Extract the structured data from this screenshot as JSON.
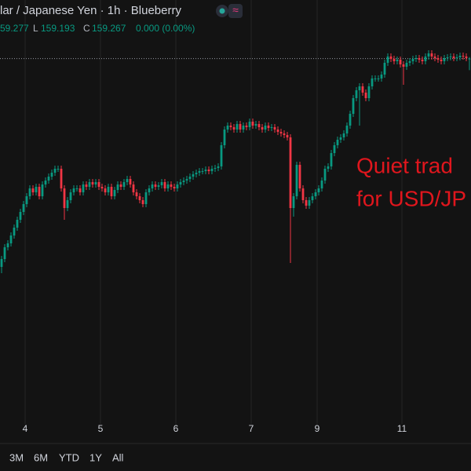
{
  "chart_data": {
    "type": "candlestick",
    "title": "lar / Japanese Yen · 1h · Blueberry",
    "ohlc_legend": {
      "high": "59.277",
      "low_label": "L",
      "low": "159.193",
      "close_label": "C",
      "close": "159.267",
      "change": "0.000 (0.00%)"
    },
    "annotation": [
      "Quiet trad",
      "for USD/JP"
    ],
    "up_color": "#089981",
    "down_color": "#f23645",
    "grid": true,
    "last_price_line": true,
    "xlim": [
      -0.5,
      149.5
    ],
    "xticks": [
      {
        "value": 7.5,
        "label": "4"
      },
      {
        "value": 31.5,
        "label": "5"
      },
      {
        "value": 55.5,
        "label": "6"
      },
      {
        "value": 79.5,
        "label": "7"
      },
      {
        "value": 100.5,
        "label": "9"
      },
      {
        "value": 127.5,
        "label": "11"
      }
    ],
    "ylim": [
      156.94,
      159.64
    ],
    "open": [
      157.94,
      157.99,
      158.065,
      158.09,
      158.14,
      158.19,
      158.24,
      158.29,
      158.34,
      158.39,
      158.44,
      158.415,
      158.45,
      158.39,
      158.465,
      158.49,
      158.515,
      158.54,
      158.565,
      158.565,
      158.44,
      158.315,
      158.365,
      158.415,
      158.44,
      158.44,
      158.415,
      158.465,
      158.45,
      158.48,
      158.465,
      158.48,
      158.45,
      158.44,
      158.415,
      158.45,
      158.39,
      158.43,
      158.465,
      158.45,
      158.48,
      158.5,
      158.465,
      158.415,
      158.39,
      158.365,
      158.34,
      158.415,
      158.44,
      158.465,
      158.45,
      158.46,
      158.48,
      158.44,
      158.465,
      158.45,
      158.44,
      158.465,
      158.48,
      158.49,
      158.5,
      158.515,
      158.53,
      158.54,
      158.55,
      158.55,
      158.56,
      158.55,
      158.565,
      158.57,
      158.58,
      158.715,
      158.815,
      158.84,
      158.83,
      158.815,
      158.85,
      158.815,
      158.84,
      158.83,
      158.865,
      158.84,
      158.85,
      158.83,
      158.815,
      158.84,
      158.825,
      158.83,
      158.815,
      158.8,
      158.79,
      158.78,
      158.765,
      158.315,
      158.39,
      158.59,
      158.44,
      158.365,
      158.33,
      158.365,
      158.39,
      158.415,
      158.44,
      158.49,
      158.565,
      158.58,
      158.665,
      158.715,
      158.75,
      158.765,
      158.79,
      158.84,
      158.915,
      159.015,
      159.065,
      159.09,
      159.05,
      159.015,
      159.09,
      159.14,
      159.14,
      159.14,
      159.165,
      159.24,
      159.28,
      159.265,
      159.25,
      159.26,
      159.23,
      159.215,
      159.24,
      159.25,
      159.265,
      159.27,
      159.26,
      159.25,
      159.28,
      159.3,
      159.28,
      159.27,
      159.26,
      159.25,
      159.27,
      159.275,
      159.28,
      159.27,
      159.275,
      159.285,
      159.28,
      159.267
    ],
    "high": [
      158.01,
      158.085,
      158.11,
      158.16,
      158.21,
      158.26,
      158.31,
      158.36,
      158.41,
      158.46,
      158.46,
      158.47,
      158.47,
      158.485,
      158.51,
      158.535,
      158.56,
      158.585,
      158.585,
      158.585,
      158.46,
      158.385,
      158.435,
      158.46,
      158.46,
      158.46,
      158.485,
      158.485,
      158.5,
      158.5,
      158.5,
      158.5,
      158.47,
      158.46,
      158.47,
      158.47,
      158.45,
      158.485,
      158.485,
      158.5,
      158.52,
      158.52,
      158.485,
      158.435,
      158.41,
      158.385,
      158.435,
      158.46,
      158.485,
      158.485,
      158.48,
      158.5,
      158.5,
      158.485,
      158.485,
      158.47,
      158.485,
      158.5,
      158.51,
      158.52,
      158.535,
      158.55,
      158.56,
      158.57,
      158.57,
      158.58,
      158.58,
      158.585,
      158.59,
      158.6,
      158.735,
      158.835,
      158.86,
      158.86,
      158.85,
      158.87,
      158.87,
      158.86,
      158.86,
      158.885,
      158.885,
      158.87,
      158.87,
      158.85,
      158.86,
      158.86,
      158.85,
      158.85,
      158.835,
      158.82,
      158.81,
      158.8,
      158.785,
      158.41,
      158.61,
      158.61,
      158.46,
      158.385,
      158.385,
      158.41,
      158.435,
      158.46,
      158.51,
      158.585,
      158.6,
      158.685,
      158.735,
      158.77,
      158.785,
      158.81,
      158.86,
      158.935,
      159.035,
      159.085,
      159.11,
      159.11,
      159.07,
      159.11,
      159.16,
      159.16,
      159.16,
      159.185,
      159.26,
      159.3,
      159.3,
      159.285,
      159.28,
      159.28,
      159.25,
      159.26,
      159.27,
      159.285,
      159.29,
      159.29,
      159.28,
      159.3,
      159.32,
      159.32,
      159.3,
      159.29,
      159.28,
      159.29,
      159.295,
      159.3,
      159.3,
      159.295,
      159.305,
      159.305,
      159.3,
      159.277
    ],
    "low": [
      157.9,
      157.97,
      158.045,
      158.07,
      158.12,
      158.17,
      158.22,
      158.27,
      158.32,
      158.37,
      158.395,
      158.395,
      158.37,
      158.37,
      158.445,
      158.47,
      158.495,
      158.52,
      158.545,
      158.42,
      158.24,
      158.295,
      158.345,
      158.395,
      158.42,
      158.395,
      158.395,
      158.43,
      158.43,
      158.445,
      158.445,
      158.43,
      158.42,
      158.395,
      158.395,
      158.37,
      158.37,
      158.41,
      158.43,
      158.43,
      158.46,
      158.445,
      158.395,
      158.37,
      158.345,
      158.32,
      158.32,
      158.395,
      158.42,
      158.43,
      158.43,
      158.44,
      158.42,
      158.42,
      158.43,
      158.42,
      158.42,
      158.445,
      158.46,
      158.47,
      158.48,
      158.495,
      158.51,
      158.52,
      158.53,
      158.53,
      158.53,
      158.53,
      158.545,
      158.55,
      158.56,
      158.695,
      158.795,
      158.81,
      158.795,
      158.795,
      158.795,
      158.795,
      158.81,
      158.81,
      158.82,
      158.82,
      158.81,
      158.795,
      158.795,
      158.805,
      158.805,
      158.795,
      158.78,
      158.77,
      158.76,
      158.745,
      157.965,
      158.26,
      158.37,
      158.42,
      158.345,
      158.31,
      158.31,
      158.345,
      158.37,
      158.395,
      158.42,
      158.47,
      158.545,
      158.56,
      158.645,
      158.695,
      158.73,
      158.745,
      158.77,
      158.82,
      158.895,
      158.995,
      158.84,
      159.03,
      158.995,
      158.995,
      159.07,
      159.12,
      159.12,
      159.12,
      159.145,
      159.22,
      159.245,
      159.23,
      159.23,
      159.21,
      159.1,
      159.195,
      159.22,
      159.23,
      159.245,
      159.24,
      159.23,
      159.23,
      159.26,
      159.26,
      159.25,
      159.24,
      159.23,
      159.23,
      159.25,
      159.255,
      159.25,
      159.25,
      159.255,
      159.26,
      159.25,
      159.193
    ],
    "close": [
      157.99,
      158.065,
      158.09,
      158.14,
      158.19,
      158.24,
      158.29,
      158.34,
      158.39,
      158.44,
      158.415,
      158.45,
      158.39,
      158.465,
      158.49,
      158.515,
      158.54,
      158.565,
      158.565,
      158.44,
      158.315,
      158.365,
      158.415,
      158.44,
      158.44,
      158.415,
      158.465,
      158.45,
      158.48,
      158.465,
      158.48,
      158.45,
      158.44,
      158.415,
      158.45,
      158.39,
      158.43,
      158.465,
      158.45,
      158.48,
      158.5,
      158.465,
      158.415,
      158.39,
      158.365,
      158.34,
      158.415,
      158.44,
      158.465,
      158.45,
      158.46,
      158.48,
      158.44,
      158.465,
      158.45,
      158.44,
      158.465,
      158.48,
      158.49,
      158.5,
      158.515,
      158.53,
      158.54,
      158.55,
      158.55,
      158.56,
      158.55,
      158.565,
      158.57,
      158.58,
      158.715,
      158.815,
      158.84,
      158.83,
      158.815,
      158.85,
      158.815,
      158.84,
      158.83,
      158.865,
      158.84,
      158.85,
      158.83,
      158.815,
      158.84,
      158.825,
      158.83,
      158.815,
      158.8,
      158.79,
      158.78,
      158.765,
      158.315,
      158.39,
      158.59,
      158.44,
      158.365,
      158.33,
      158.365,
      158.39,
      158.415,
      158.44,
      158.49,
      158.565,
      158.58,
      158.665,
      158.715,
      158.75,
      158.765,
      158.79,
      158.84,
      158.915,
      159.015,
      159.065,
      159.09,
      159.05,
      159.015,
      159.09,
      159.14,
      159.14,
      159.14,
      159.165,
      159.24,
      159.28,
      159.265,
      159.25,
      159.26,
      159.23,
      159.215,
      159.24,
      159.25,
      159.265,
      159.27,
      159.26,
      159.25,
      159.28,
      159.3,
      159.28,
      159.27,
      159.26,
      159.25,
      159.27,
      159.275,
      159.28,
      159.27,
      159.275,
      159.285,
      159.28,
      159.27,
      159.267
    ]
  },
  "range_buttons": [
    "3M",
    "6M",
    "YTD",
    "1Y",
    "All"
  ]
}
